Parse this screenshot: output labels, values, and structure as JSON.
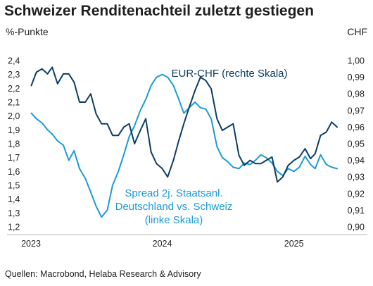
{
  "header": {
    "title": "Schweizer Renditenachteil zuletzt gestiegen",
    "unit_left": "%-Punkte",
    "unit_right": "CHF"
  },
  "footer": {
    "source": "Quellen: Macrobond, Helaba Research & Advisory"
  },
  "colors": {
    "eurchf": "#0d3d63",
    "spread": "#1c9ad6",
    "text": "#1f1f1f",
    "axis": "#b4b4b4"
  },
  "chart_data": {
    "type": "line",
    "left_axis": {
      "ylim": [
        1.2,
        2.4
      ],
      "ticks": [
        "2,4",
        "2,3",
        "2,2",
        "2,1",
        "2,0",
        "1,9",
        "1,8",
        "1,7",
        "1,6",
        "1,5",
        "1,4",
        "1,3",
        "1,2"
      ]
    },
    "right_axis": {
      "ylim": [
        0.9,
        1.0
      ],
      "ticks": [
        "1,00",
        "0,99",
        "0,98",
        "0,97",
        "0,96",
        "0,95",
        "0,94",
        "0,93",
        "0,92",
        "0,91",
        "0,90"
      ]
    },
    "x_axis": {
      "range": [
        "2023-01-01",
        "2025-05-01"
      ],
      "ticks": [
        {
          "label": "2023",
          "date": "2023-01-01"
        },
        {
          "label": "2024",
          "date": "2024-01-01"
        },
        {
          "label": "2025",
          "date": "2025-01-01"
        }
      ]
    },
    "series": [
      {
        "name": "EUR-CHF (rechte Skala)",
        "axis": "right",
        "color": "#0d3d63",
        "label_lines": [
          "EUR-CHF (rechte Skala)"
        ],
        "points": [
          [
            "2023-01-02",
            0.985
          ],
          [
            "2023-01-16",
            0.993
          ],
          [
            "2023-02-01",
            0.995
          ],
          [
            "2023-02-16",
            0.992
          ],
          [
            "2023-03-01",
            0.996
          ],
          [
            "2023-03-16",
            0.986
          ],
          [
            "2023-04-01",
            0.992
          ],
          [
            "2023-04-16",
            0.992
          ],
          [
            "2023-05-01",
            0.987
          ],
          [
            "2023-05-16",
            0.975
          ],
          [
            "2023-06-01",
            0.975
          ],
          [
            "2023-06-16",
            0.98
          ],
          [
            "2023-07-01",
            0.968
          ],
          [
            "2023-07-16",
            0.962
          ],
          [
            "2023-08-01",
            0.962
          ],
          [
            "2023-08-16",
            0.955
          ],
          [
            "2023-09-01",
            0.955
          ],
          [
            "2023-09-16",
            0.96
          ],
          [
            "2023-10-01",
            0.962
          ],
          [
            "2023-10-16",
            0.95
          ],
          [
            "2023-11-01",
            0.958
          ],
          [
            "2023-11-16",
            0.965
          ],
          [
            "2023-12-01",
            0.945
          ],
          [
            "2023-12-16",
            0.938
          ],
          [
            "2024-01-01",
            0.935
          ],
          [
            "2024-01-16",
            0.93
          ],
          [
            "2024-02-01",
            0.94
          ],
          [
            "2024-02-16",
            0.952
          ],
          [
            "2024-03-01",
            0.962
          ],
          [
            "2024-03-16",
            0.972
          ],
          [
            "2024-04-01",
            0.982
          ],
          [
            "2024-04-16",
            0.99
          ],
          [
            "2024-05-01",
            0.988
          ],
          [
            "2024-05-16",
            0.983
          ],
          [
            "2024-06-01",
            0.965
          ],
          [
            "2024-06-16",
            0.958
          ],
          [
            "2024-07-01",
            0.96
          ],
          [
            "2024-07-16",
            0.962
          ],
          [
            "2024-08-01",
            0.943
          ],
          [
            "2024-08-16",
            0.937
          ],
          [
            "2024-09-01",
            0.94
          ],
          [
            "2024-09-16",
            0.938
          ],
          [
            "2024-10-01",
            0.938
          ],
          [
            "2024-10-16",
            0.94
          ],
          [
            "2024-11-01",
            0.942
          ],
          [
            "2024-11-16",
            0.927
          ],
          [
            "2024-12-01",
            0.93
          ],
          [
            "2024-12-16",
            0.937
          ],
          [
            "2025-01-01",
            0.94
          ],
          [
            "2025-01-16",
            0.942
          ],
          [
            "2025-02-01",
            0.947
          ],
          [
            "2025-02-16",
            0.941
          ],
          [
            "2025-03-01",
            0.944
          ],
          [
            "2025-03-16",
            0.955
          ],
          [
            "2025-04-01",
            0.957
          ],
          [
            "2025-04-16",
            0.963
          ],
          [
            "2025-05-01",
            0.96
          ]
        ]
      },
      {
        "name": "Spread 2j. Staatsanl. Deutschland vs. Schweiz (linke Skala)",
        "axis": "left",
        "color": "#1c9ad6",
        "label_lines": [
          "Spread 2j. Staatsanl.",
          "Deutschland vs. Schweiz",
          "(linke Skala)"
        ],
        "points": [
          [
            "2023-01-02",
            2.02
          ],
          [
            "2023-01-16",
            1.98
          ],
          [
            "2023-02-01",
            1.95
          ],
          [
            "2023-02-16",
            1.9
          ],
          [
            "2023-03-01",
            1.87
          ],
          [
            "2023-03-16",
            1.82
          ],
          [
            "2023-04-01",
            1.79
          ],
          [
            "2023-04-16",
            1.68
          ],
          [
            "2023-05-01",
            1.75
          ],
          [
            "2023-05-16",
            1.62
          ],
          [
            "2023-06-01",
            1.55
          ],
          [
            "2023-06-16",
            1.45
          ],
          [
            "2023-07-01",
            1.35
          ],
          [
            "2023-07-16",
            1.27
          ],
          [
            "2023-08-01",
            1.32
          ],
          [
            "2023-08-16",
            1.5
          ],
          [
            "2023-09-01",
            1.6
          ],
          [
            "2023-09-16",
            1.72
          ],
          [
            "2023-10-01",
            1.85
          ],
          [
            "2023-10-16",
            1.93
          ],
          [
            "2023-11-01",
            2.04
          ],
          [
            "2023-11-16",
            2.12
          ],
          [
            "2023-12-01",
            2.22
          ],
          [
            "2023-12-16",
            2.28
          ],
          [
            "2024-01-01",
            2.3
          ],
          [
            "2024-01-16",
            2.28
          ],
          [
            "2024-02-01",
            2.22
          ],
          [
            "2024-02-16",
            2.12
          ],
          [
            "2024-03-01",
            2.02
          ],
          [
            "2024-03-16",
            2.06
          ],
          [
            "2024-04-01",
            2.1
          ],
          [
            "2024-04-16",
            2.06
          ],
          [
            "2024-05-01",
            2.05
          ],
          [
            "2024-05-16",
            1.98
          ],
          [
            "2024-06-01",
            1.78
          ],
          [
            "2024-06-16",
            1.7
          ],
          [
            "2024-07-01",
            1.67
          ],
          [
            "2024-07-16",
            1.63
          ],
          [
            "2024-08-01",
            1.62
          ],
          [
            "2024-08-16",
            1.66
          ],
          [
            "2024-09-01",
            1.65
          ],
          [
            "2024-09-16",
            1.68
          ],
          [
            "2024-10-01",
            1.72
          ],
          [
            "2024-10-16",
            1.7
          ],
          [
            "2024-11-01",
            1.66
          ],
          [
            "2024-11-16",
            1.6
          ],
          [
            "2024-12-01",
            1.57
          ],
          [
            "2024-12-16",
            1.62
          ],
          [
            "2025-01-01",
            1.6
          ],
          [
            "2025-01-16",
            1.63
          ],
          [
            "2025-02-01",
            1.71
          ],
          [
            "2025-02-16",
            1.65
          ],
          [
            "2025-03-01",
            1.62
          ],
          [
            "2025-03-16",
            1.72
          ],
          [
            "2025-04-01",
            1.65
          ],
          [
            "2025-04-16",
            1.63
          ],
          [
            "2025-05-01",
            1.62
          ]
        ]
      }
    ]
  }
}
